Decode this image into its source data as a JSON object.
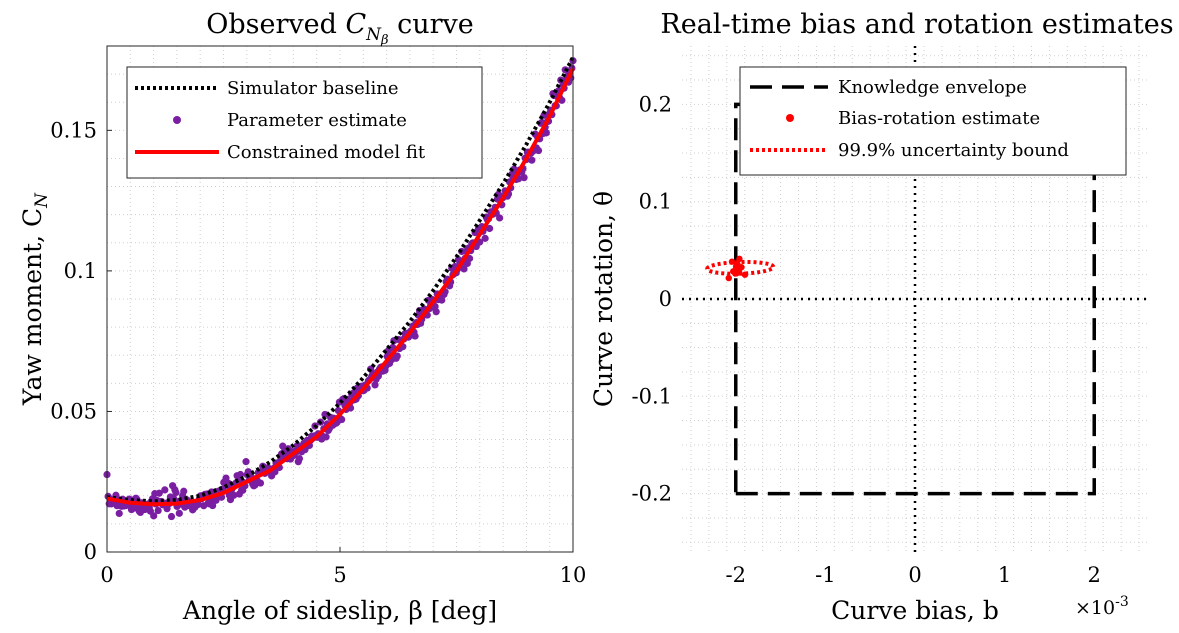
{
  "chart_data": [
    {
      "type": "scatter",
      "title": "Observed C_Nβ curve",
      "title_main": "Observed ",
      "title_sym": "C",
      "title_sub": "N",
      "title_subsub": "β",
      "title_tail": " curve",
      "xlabel": "Angle of sideslip, β [deg]",
      "ylabel": "Yaw moment, C",
      "ylabel_sub": "N",
      "xlim": [
        0,
        10
      ],
      "ylim": [
        0,
        0.18
      ],
      "xticks": [
        0,
        5,
        10
      ],
      "xtick_labels": [
        "0",
        "5",
        "10"
      ],
      "yticks": [
        0,
        0.05,
        0.1,
        0.15
      ],
      "ytick_labels": [
        "0",
        "0.05",
        "0.1",
        "0.15"
      ],
      "grid": "minor dotted",
      "legend_position": "top-left",
      "series": [
        {
          "name": "Simulator baseline",
          "style": "dotted-line",
          "color": "#000000",
          "x": [
            0,
            0.5,
            1,
            1.5,
            2,
            2.5,
            3,
            3.5,
            4,
            4.5,
            5,
            5.5,
            6,
            6.5,
            7,
            7.5,
            8,
            8.5,
            9,
            9.5,
            10
          ],
          "y": [
            0.0195,
            0.0185,
            0.018,
            0.0185,
            0.02,
            0.023,
            0.027,
            0.032,
            0.038,
            0.045,
            0.053,
            0.062,
            0.072,
            0.082,
            0.093,
            0.105,
            0.118,
            0.131,
            0.145,
            0.16,
            0.176
          ]
        },
        {
          "name": "Parameter estimate",
          "style": "markers",
          "color": "#7b1fa2",
          "x": [
            0,
            0.5,
            1,
            1.5,
            2,
            2.5,
            3,
            3.5,
            4,
            4.5,
            5,
            5.5,
            6,
            6.5,
            7,
            7.5,
            8,
            8.5,
            9,
            9.5,
            10
          ],
          "y": [
            0.019,
            0.0175,
            0.017,
            0.0172,
            0.0185,
            0.021,
            0.025,
            0.029,
            0.035,
            0.041,
            0.049,
            0.058,
            0.068,
            0.078,
            0.089,
            0.1,
            0.113,
            0.126,
            0.14,
            0.155,
            0.174
          ]
        },
        {
          "name": "Constrained model fit",
          "style": "solid-line",
          "color": "#ff0000",
          "x": [
            0,
            0.5,
            1,
            1.5,
            2,
            2.5,
            3,
            3.5,
            4,
            4.5,
            5,
            5.5,
            6,
            6.5,
            7,
            7.5,
            8,
            8.5,
            9,
            9.5,
            10
          ],
          "y": [
            0.019,
            0.0175,
            0.017,
            0.0172,
            0.0185,
            0.021,
            0.025,
            0.029,
            0.035,
            0.041,
            0.049,
            0.058,
            0.068,
            0.078,
            0.089,
            0.1,
            0.113,
            0.126,
            0.14,
            0.155,
            0.172
          ]
        }
      ]
    },
    {
      "type": "scatter",
      "title": "Real-time bias and rotation estimates",
      "xlabel": "Curve bias, b",
      "ylabel": "Curve rotation, θ",
      "x_multiplier": "×10",
      "x_multiplier_exp": "-3",
      "xlim": [
        -2.6,
        2.6
      ],
      "ylim": [
        -0.26,
        0.26
      ],
      "xticks": [
        -2,
        -1,
        0,
        1,
        2
      ],
      "xtick_labels": [
        "-2",
        "-1",
        "0",
        "1",
        "2"
      ],
      "yticks": [
        -0.2,
        -0.1,
        0,
        0.1,
        0.2
      ],
      "ytick_labels": [
        "-0.2",
        "-0.1",
        "0",
        "0.1",
        "0.2"
      ],
      "grid": "minor dotted",
      "legend_position": "top-right",
      "series": [
        {
          "name": "Knowledge envelope",
          "style": "dashed-line",
          "color": "#000000",
          "x": [
            -2,
            2,
            2,
            -2,
            -2
          ],
          "y": [
            -0.2,
            -0.2,
            0.2,
            0.2,
            -0.2
          ]
        },
        {
          "name": "Bias-rotation estimate",
          "style": "markers",
          "color": "#ff0000",
          "x": [
            -1.97
          ],
          "y": [
            0.032
          ]
        },
        {
          "name": "99.9% uncertainty bound",
          "style": "dotted-line",
          "color": "#ff0000",
          "ellipse": {
            "cx": -1.95,
            "cy": 0.032,
            "rx": 0.37,
            "ry": 0.006,
            "angle_deg": 5
          }
        }
      ],
      "reference_lines": [
        {
          "axis": "x",
          "value": 0,
          "style": "dotted"
        },
        {
          "axis": "y",
          "value": 0,
          "style": "dotted"
        }
      ]
    }
  ]
}
